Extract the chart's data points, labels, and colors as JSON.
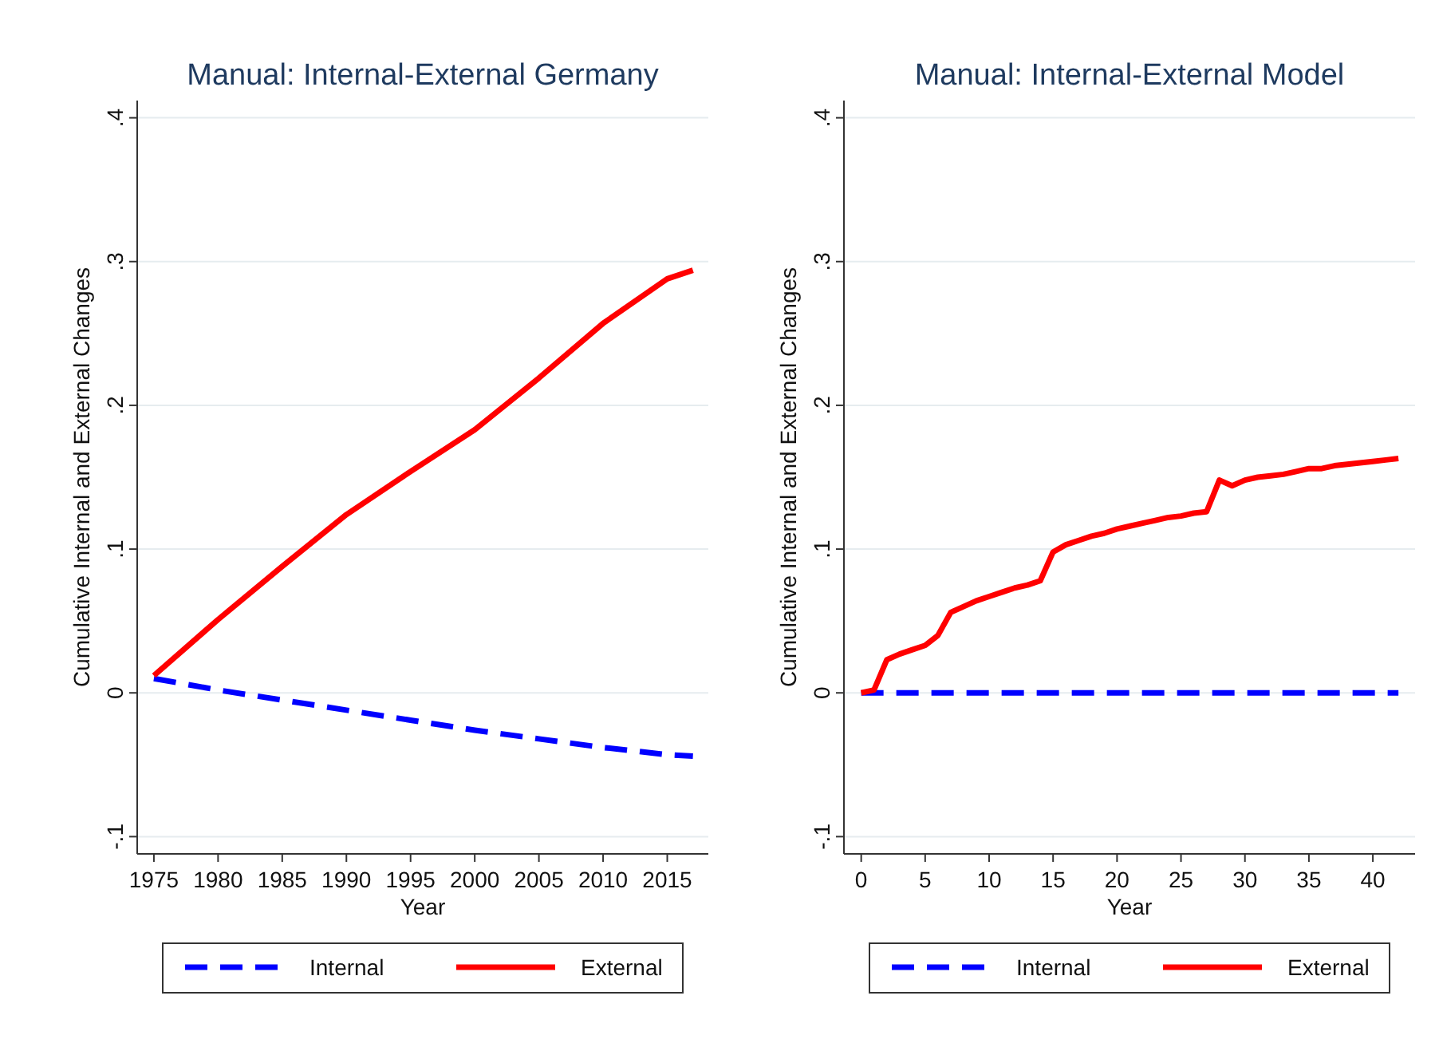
{
  "chart_data": [
    {
      "type": "line",
      "title": "Manual: Internal-External Germany",
      "xlabel": "Year",
      "ylabel": "Cumulative Internal and External Changes",
      "xlim": [
        1973.7,
        2018.2
      ],
      "xticks": [
        1975,
        1980,
        1985,
        1990,
        1995,
        2000,
        2005,
        2010,
        2015
      ],
      "ylim": [
        -0.112,
        0.412
      ],
      "yticks": [
        {
          "value": -0.1,
          "label": "-.1"
        },
        0,
        {
          "value": 0.1,
          "label": ".1"
        },
        {
          "value": 0.2,
          "label": ".2"
        },
        {
          "value": 0.3,
          "label": ".3"
        },
        {
          "value": 0.4,
          "label": ".4"
        }
      ],
      "grid": "y",
      "legend": "bottom",
      "series": [
        {
          "name": "Internal",
          "color": "#0000ff",
          "line_style": "dashed",
          "x": [
            1975,
            1980,
            1985,
            1990,
            1995,
            2000,
            2005,
            2010,
            2015,
            2017
          ],
          "values": [
            0.01,
            0.002,
            -0.005,
            -0.012,
            -0.019,
            -0.026,
            -0.032,
            -0.038,
            -0.043,
            -0.044
          ]
        },
        {
          "name": "External",
          "color": "#ff0000",
          "line_style": "solid",
          "x": [
            1975,
            1980,
            1985,
            1990,
            1995,
            2000,
            2005,
            2010,
            2015,
            2017
          ],
          "values": [
            0.012,
            0.051,
            0.088,
            0.124,
            0.154,
            0.183,
            0.219,
            0.257,
            0.288,
            0.294
          ]
        }
      ]
    },
    {
      "type": "line",
      "title": "Manual: Internal-External Model",
      "xlabel": "Year",
      "ylabel": "Cumulative Internal and External Changes",
      "xlim": [
        -1.35,
        43.3
      ],
      "xticks": [
        0,
        5,
        10,
        15,
        20,
        25,
        30,
        35,
        40
      ],
      "ylim": [
        -0.112,
        0.412
      ],
      "yticks": [
        {
          "value": -0.1,
          "label": "-.1"
        },
        0,
        {
          "value": 0.1,
          "label": ".1"
        },
        {
          "value": 0.2,
          "label": ".2"
        },
        {
          "value": 0.3,
          "label": ".3"
        },
        {
          "value": 0.4,
          "label": ".4"
        }
      ],
      "grid": "y",
      "legend": "bottom",
      "series": [
        {
          "name": "Internal",
          "color": "#0000ff",
          "line_style": "dashed",
          "x": [
            0,
            42
          ],
          "values": [
            0,
            0
          ]
        },
        {
          "name": "External",
          "color": "#ff0000",
          "line_style": "solid",
          "x": [
            0,
            1,
            2,
            3,
            4,
            5,
            6,
            7,
            8,
            9,
            10,
            11,
            12,
            13,
            14,
            15,
            16,
            17,
            18,
            19,
            20,
            21,
            22,
            23,
            24,
            25,
            26,
            27,
            28,
            29,
            30,
            31,
            32,
            33,
            34,
            35,
            36,
            37,
            38,
            39,
            40,
            41,
            42
          ],
          "values": [
            0,
            0.002,
            0.023,
            0.027,
            0.03,
            0.033,
            0.04,
            0.056,
            0.06,
            0.064,
            0.067,
            0.07,
            0.073,
            0.075,
            0.078,
            0.098,
            0.103,
            0.106,
            0.109,
            0.111,
            0.114,
            0.116,
            0.118,
            0.12,
            0.122,
            0.123,
            0.125,
            0.126,
            0.148,
            0.144,
            0.148,
            0.15,
            0.151,
            0.152,
            0.154,
            0.156,
            0.156,
            0.158,
            0.159,
            0.16,
            0.161,
            0.162,
            0.163
          ]
        }
      ]
    }
  ]
}
